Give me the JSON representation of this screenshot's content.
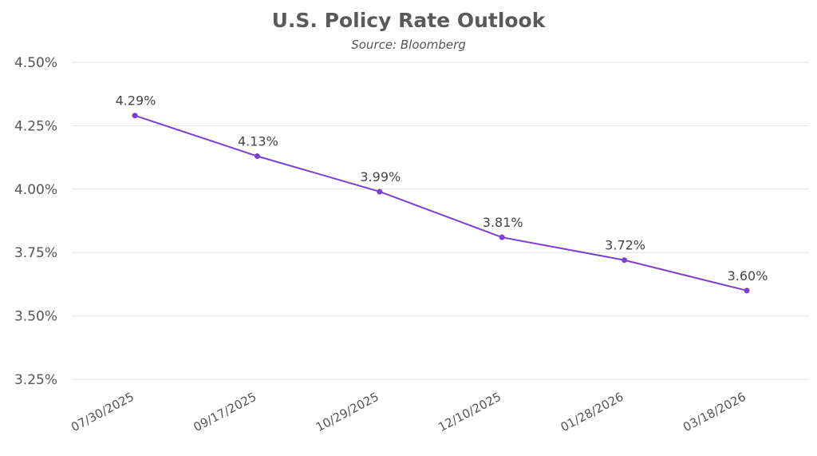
{
  "chart_data": {
    "type": "line",
    "title": "U.S. Policy Rate Outlook",
    "subtitle": "Source: Bloomberg",
    "xlabel": "",
    "ylabel": "",
    "categories": [
      "07/30/2025",
      "09/17/2025",
      "10/29/2025",
      "12/10/2025",
      "01/28/2026",
      "03/18/2026"
    ],
    "series": [
      {
        "values": [
          4.29,
          4.13,
          3.99,
          3.81,
          3.72,
          3.6
        ],
        "data_labels": [
          "4.29%",
          "4.13%",
          "3.99%",
          "3.81%",
          "3.72%",
          "3.60%"
        ],
        "color": "#7b3fd6"
      }
    ],
    "ylim": [
      3.25,
      4.5
    ],
    "yticks": [
      3.25,
      3.5,
      3.75,
      4.0,
      4.25,
      4.5
    ],
    "ytick_labels": [
      "3.25%",
      "3.50%",
      "3.75%",
      "4.00%",
      "4.25%",
      "4.50%"
    ],
    "grid": true,
    "legend": "none"
  }
}
